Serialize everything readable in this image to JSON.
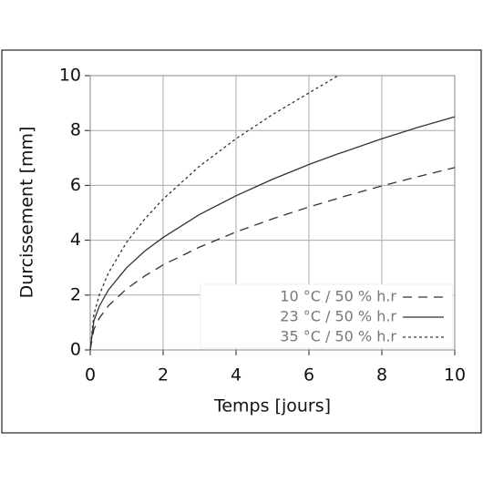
{
  "chart_data": {
    "type": "line",
    "x_label": "Temps [jours]",
    "y_label": "Durcissement [mm]",
    "x": [
      0,
      0.1,
      0.25,
      0.5,
      1,
      1.5,
      2,
      3,
      4,
      5,
      6,
      6.8,
      7,
      8,
      9,
      10
    ],
    "series": [
      {
        "name": "10 °C / 50 % h.r",
        "color": "#333333",
        "dash": "10,7",
        "values": [
          0,
          0.75,
          1.16,
          1.61,
          2.23,
          2.7,
          3.1,
          3.75,
          4.3,
          4.78,
          5.21,
          5.53,
          5.61,
          5.98,
          6.32,
          6.65
        ]
      },
      {
        "name": "23 °C / 50 % h.r",
        "color": "#333333",
        "dash": "none",
        "values": [
          0,
          1.06,
          1.6,
          2.19,
          3.0,
          3.61,
          4.1,
          4.94,
          5.62,
          6.22,
          6.76,
          7.15,
          7.24,
          7.7,
          8.12,
          8.5
        ]
      },
      {
        "name": "35 °C / 50 % h.r",
        "color": "#333333",
        "dash": "3,3",
        "values": [
          0,
          1.29,
          2.01,
          2.81,
          3.93,
          4.78,
          5.5,
          6.7,
          7.7,
          8.58,
          9.37,
          10.0,
          null,
          null,
          null,
          null
        ]
      }
    ],
    "xlim": [
      0,
      10
    ],
    "ylim": [
      0,
      10
    ],
    "xticks": [
      0,
      2,
      4,
      6,
      8,
      10
    ],
    "yticks": [
      0,
      2,
      4,
      6,
      8,
      10
    ],
    "grid": true,
    "legend": "lower right"
  }
}
